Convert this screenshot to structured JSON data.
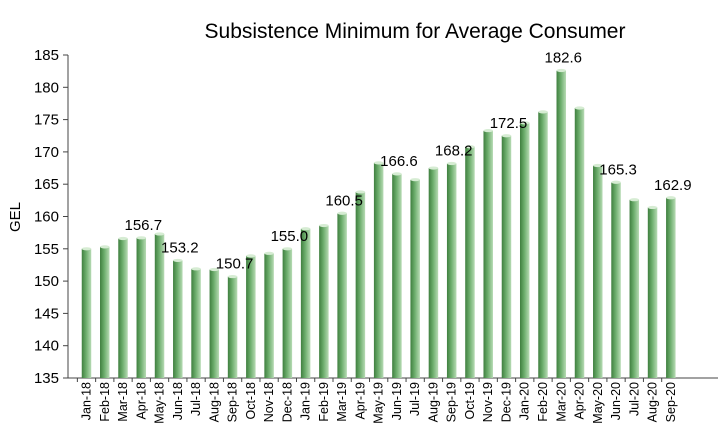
{
  "chart_data": {
    "type": "bar",
    "title": "Subsistence Minimum for Average Consumer",
    "xlabel": "",
    "ylabel": "GEL",
    "ylim": [
      135,
      185
    ],
    "yticks": [
      135,
      140,
      145,
      150,
      155,
      160,
      165,
      170,
      175,
      180,
      185
    ],
    "grid": false,
    "legend": "none",
    "bar_color": "#6cad6c",
    "categories": [
      "Jan-18",
      "Feb-18",
      "Mar-18",
      "Apr-18",
      "May-18",
      "Jun-18",
      "Jul-18",
      "Aug-18",
      "Sep-18",
      "Oct-18",
      "Nov-18",
      "Dec-18",
      "Jan-19",
      "Feb-19",
      "Mar-19",
      "Apr-19",
      "May-19",
      "Jun-19",
      "Jul-19",
      "Aug-19",
      "Sep-19",
      "Oct-19",
      "Nov-19",
      "Dec-19",
      "Jan-20",
      "Feb-20",
      "Mar-20",
      "Apr-20",
      "May-20",
      "Jun-20",
      "Jul-20",
      "Aug-20",
      "Sep-20"
    ],
    "values": [
      155.0,
      155.3,
      156.6,
      156.7,
      157.3,
      153.2,
      151.9,
      151.8,
      150.7,
      153.9,
      154.3,
      155.0,
      158.1,
      158.6,
      160.5,
      163.8,
      168.3,
      166.6,
      165.7,
      167.5,
      168.2,
      170.8,
      173.3,
      172.5,
      174.5,
      176.2,
      182.6,
      176.8,
      167.9,
      165.3,
      162.6,
      161.4,
      162.9
    ],
    "data_labels": [
      {
        "index": 3,
        "text": "156.7"
      },
      {
        "index": 5,
        "text": "153.2"
      },
      {
        "index": 8,
        "text": "150.7"
      },
      {
        "index": 11,
        "text": "155.0"
      },
      {
        "index": 14,
        "text": "160.5"
      },
      {
        "index": 17,
        "text": "166.6"
      },
      {
        "index": 20,
        "text": "168.2"
      },
      {
        "index": 23,
        "text": "172.5"
      },
      {
        "index": 26,
        "text": "182.6"
      },
      {
        "index": 29,
        "text": "165.3"
      },
      {
        "index": 32,
        "text": "162.9"
      }
    ]
  }
}
